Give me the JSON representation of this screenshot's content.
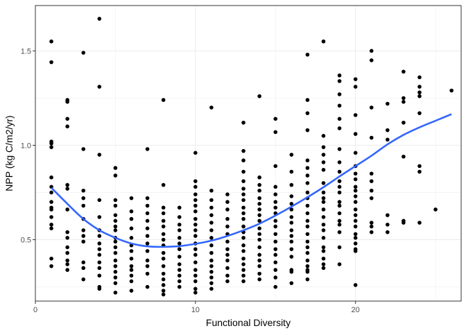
{
  "chart_data": {
    "type": "scatter",
    "title": "",
    "xlabel": "Functional Diversity",
    "ylabel": "NPP (kg C/m2/yr)",
    "xlim": [
      0,
      26.6
    ],
    "ylim": [
      0.175,
      1.74
    ],
    "x_ticks": [
      0,
      10,
      20
    ],
    "y_ticks": [
      0.5,
      1.0,
      1.5
    ],
    "x_tick_labels": [
      "0",
      "10",
      "20"
    ],
    "y_tick_labels": [
      "0.5",
      "1.0",
      "1.5"
    ],
    "grid": true,
    "legend": "none",
    "point_color": "#000000",
    "smooth_color": "#3366ff",
    "points": [
      [
        1,
        1.55
      ],
      [
        1,
        1.44
      ],
      [
        1,
        1.02
      ],
      [
        1,
        1.01
      ],
      [
        1,
        0.99
      ],
      [
        1,
        0.83
      ],
      [
        1,
        0.78
      ],
      [
        1,
        0.75
      ],
      [
        1,
        0.7
      ],
      [
        1,
        0.67
      ],
      [
        1,
        0.66
      ],
      [
        1,
        0.62
      ],
      [
        1,
        0.58
      ],
      [
        1,
        0.56
      ],
      [
        1,
        0.4
      ],
      [
        1,
        0.36
      ],
      [
        2,
        1.24
      ],
      [
        2,
        1.23
      ],
      [
        2,
        1.14
      ],
      [
        2,
        1.1
      ],
      [
        2,
        0.79
      ],
      [
        2,
        0.77
      ],
      [
        2,
        0.66
      ],
      [
        2,
        0.54
      ],
      [
        2,
        0.51
      ],
      [
        2,
        0.46
      ],
      [
        2,
        0.43
      ],
      [
        2,
        0.39
      ],
      [
        2,
        0.37
      ],
      [
        2,
        0.34
      ],
      [
        3,
        1.49
      ],
      [
        3,
        0.98
      ],
      [
        3,
        0.76
      ],
      [
        3,
        0.72
      ],
      [
        3,
        0.68
      ],
      [
        3,
        0.61
      ],
      [
        3,
        0.55
      ],
      [
        3,
        0.52
      ],
      [
        3,
        0.49
      ],
      [
        3,
        0.38
      ],
      [
        3,
        0.35
      ],
      [
        3,
        0.29
      ],
      [
        4,
        1.67
      ],
      [
        4,
        1.31
      ],
      [
        4,
        0.95
      ],
      [
        4,
        0.71
      ],
      [
        4,
        0.62
      ],
      [
        4,
        0.55
      ],
      [
        4,
        0.52
      ],
      [
        4,
        0.48
      ],
      [
        4,
        0.45
      ],
      [
        4,
        0.42
      ],
      [
        4,
        0.38
      ],
      [
        4,
        0.35
      ],
      [
        4,
        0.31
      ],
      [
        4,
        0.25
      ],
      [
        4,
        0.24
      ],
      [
        5,
        0.88
      ],
      [
        5,
        0.84
      ],
      [
        5,
        0.71
      ],
      [
        5,
        0.68
      ],
      [
        5,
        0.63
      ],
      [
        5,
        0.6
      ],
      [
        5,
        0.57
      ],
      [
        5,
        0.55
      ],
      [
        5,
        0.51
      ],
      [
        5,
        0.49
      ],
      [
        5,
        0.46
      ],
      [
        5,
        0.43
      ],
      [
        5,
        0.39
      ],
      [
        5,
        0.36
      ],
      [
        5,
        0.33
      ],
      [
        5,
        0.3
      ],
      [
        5,
        0.27
      ],
      [
        5,
        0.22
      ],
      [
        6,
        0.72
      ],
      [
        6,
        0.65
      ],
      [
        6,
        0.61
      ],
      [
        6,
        0.56
      ],
      [
        6,
        0.51
      ],
      [
        6,
        0.47
      ],
      [
        6,
        0.44
      ],
      [
        6,
        0.4
      ],
      [
        6,
        0.36
      ],
      [
        6,
        0.34
      ],
      [
        6,
        0.31
      ],
      [
        6,
        0.28
      ],
      [
        6,
        0.23
      ],
      [
        7,
        0.98
      ],
      [
        7,
        0.72
      ],
      [
        7,
        0.68
      ],
      [
        7,
        0.64
      ],
      [
        7,
        0.6
      ],
      [
        7,
        0.56
      ],
      [
        7,
        0.52
      ],
      [
        7,
        0.48
      ],
      [
        7,
        0.44
      ],
      [
        7,
        0.39
      ],
      [
        7,
        0.36
      ],
      [
        7,
        0.32
      ],
      [
        7,
        0.25
      ],
      [
        8,
        1.24
      ],
      [
        8,
        0.79
      ],
      [
        8,
        0.67
      ],
      [
        8,
        0.64
      ],
      [
        8,
        0.6
      ],
      [
        8,
        0.57
      ],
      [
        8,
        0.53
      ],
      [
        8,
        0.5
      ],
      [
        8,
        0.47
      ],
      [
        8,
        0.43
      ],
      [
        8,
        0.4
      ],
      [
        8,
        0.36
      ],
      [
        8,
        0.32
      ],
      [
        8,
        0.29
      ],
      [
        8,
        0.26
      ],
      [
        8,
        0.23
      ],
      [
        8,
        0.21
      ],
      [
        9,
        0.67
      ],
      [
        9,
        0.62
      ],
      [
        9,
        0.58
      ],
      [
        9,
        0.55
      ],
      [
        9,
        0.51
      ],
      [
        9,
        0.48
      ],
      [
        9,
        0.45
      ],
      [
        9,
        0.41
      ],
      [
        9,
        0.37
      ],
      [
        9,
        0.34
      ],
      [
        9,
        0.31
      ],
      [
        9,
        0.28
      ],
      [
        9,
        0.25
      ],
      [
        10,
        0.96
      ],
      [
        10,
        0.81
      ],
      [
        10,
        0.78
      ],
      [
        10,
        0.74
      ],
      [
        10,
        0.71
      ],
      [
        10,
        0.68
      ],
      [
        10,
        0.65
      ],
      [
        10,
        0.61
      ],
      [
        10,
        0.58
      ],
      [
        10,
        0.55
      ],
      [
        10,
        0.52
      ],
      [
        10,
        0.48
      ],
      [
        10,
        0.45
      ],
      [
        10,
        0.42
      ],
      [
        10,
        0.38
      ],
      [
        10,
        0.34
      ],
      [
        10,
        0.31
      ],
      [
        10,
        0.28
      ],
      [
        10,
        0.24
      ],
      [
        10,
        0.22
      ],
      [
        11,
        1.2
      ],
      [
        11,
        0.76
      ],
      [
        11,
        0.71
      ],
      [
        11,
        0.67
      ],
      [
        11,
        0.63
      ],
      [
        11,
        0.59
      ],
      [
        11,
        0.55
      ],
      [
        11,
        0.51
      ],
      [
        11,
        0.47
      ],
      [
        11,
        0.43
      ],
      [
        11,
        0.39
      ],
      [
        11,
        0.36
      ],
      [
        11,
        0.33
      ],
      [
        11,
        0.3
      ],
      [
        11,
        0.27
      ],
      [
        11,
        0.24
      ],
      [
        12,
        0.74
      ],
      [
        12,
        0.7
      ],
      [
        12,
        0.66
      ],
      [
        12,
        0.61
      ],
      [
        12,
        0.57
      ],
      [
        12,
        0.53
      ],
      [
        12,
        0.49
      ],
      [
        12,
        0.45
      ],
      [
        12,
        0.42
      ],
      [
        12,
        0.39
      ],
      [
        12,
        0.35
      ],
      [
        12,
        0.31
      ],
      [
        12,
        0.28
      ],
      [
        13,
        1.12
      ],
      [
        13,
        0.97
      ],
      [
        13,
        0.92
      ],
      [
        13,
        0.86
      ],
      [
        13,
        0.81
      ],
      [
        13,
        0.77
      ],
      [
        13,
        0.74
      ],
      [
        13,
        0.71
      ],
      [
        13,
        0.67
      ],
      [
        13,
        0.64
      ],
      [
        13,
        0.61
      ],
      [
        13,
        0.57
      ],
      [
        13,
        0.54
      ],
      [
        13,
        0.51
      ],
      [
        13,
        0.47
      ],
      [
        13,
        0.44
      ],
      [
        13,
        0.4
      ],
      [
        13,
        0.37
      ],
      [
        13,
        0.34
      ],
      [
        13,
        0.31
      ],
      [
        13,
        0.28
      ],
      [
        14,
        1.26
      ],
      [
        14,
        0.83
      ],
      [
        14,
        0.79
      ],
      [
        14,
        0.76
      ],
      [
        14,
        0.72
      ],
      [
        14,
        0.69
      ],
      [
        14,
        0.66
      ],
      [
        14,
        0.63
      ],
      [
        14,
        0.6
      ],
      [
        14,
        0.56
      ],
      [
        14,
        0.53
      ],
      [
        14,
        0.5
      ],
      [
        14,
        0.46
      ],
      [
        14,
        0.42
      ],
      [
        14,
        0.39
      ],
      [
        14,
        0.36
      ],
      [
        14,
        0.32
      ],
      [
        14,
        0.29
      ],
      [
        15,
        1.14
      ],
      [
        15,
        1.07
      ],
      [
        15,
        0.89
      ],
      [
        15,
        0.78
      ],
      [
        15,
        0.74
      ],
      [
        15,
        0.7
      ],
      [
        15,
        0.67
      ],
      [
        15,
        0.64
      ],
      [
        15,
        0.6
      ],
      [
        15,
        0.57
      ],
      [
        15,
        0.53
      ],
      [
        15,
        0.49
      ],
      [
        15,
        0.45
      ],
      [
        15,
        0.42
      ],
      [
        15,
        0.38
      ],
      [
        15,
        0.34
      ],
      [
        15,
        0.3
      ],
      [
        15,
        0.25
      ],
      [
        16,
        0.95
      ],
      [
        16,
        0.86
      ],
      [
        16,
        0.79
      ],
      [
        16,
        0.73
      ],
      [
        16,
        0.69
      ],
      [
        16,
        0.66
      ],
      [
        16,
        0.62
      ],
      [
        16,
        0.59
      ],
      [
        16,
        0.55
      ],
      [
        16,
        0.52
      ],
      [
        16,
        0.49
      ],
      [
        16,
        0.45
      ],
      [
        16,
        0.41
      ],
      [
        16,
        0.34
      ],
      [
        16,
        0.33
      ],
      [
        16,
        0.27
      ],
      [
        17,
        1.48
      ],
      [
        17,
        1.24
      ],
      [
        17,
        1.17
      ],
      [
        17,
        1.08
      ],
      [
        17,
        0.92
      ],
      [
        17,
        0.88
      ],
      [
        17,
        0.84
      ],
      [
        17,
        0.8
      ],
      [
        17,
        0.75
      ],
      [
        17,
        0.72
      ],
      [
        17,
        0.68
      ],
      [
        17,
        0.64
      ],
      [
        17,
        0.6
      ],
      [
        17,
        0.57
      ],
      [
        17,
        0.53
      ],
      [
        17,
        0.49
      ],
      [
        17,
        0.46
      ],
      [
        17,
        0.43
      ],
      [
        17,
        0.39
      ],
      [
        17,
        0.36
      ],
      [
        17,
        0.34
      ],
      [
        17,
        0.33
      ],
      [
        17,
        0.29
      ],
      [
        18,
        1.55
      ],
      [
        18,
        1.05
      ],
      [
        18,
        0.99
      ],
      [
        18,
        0.95
      ],
      [
        18,
        0.91
      ],
      [
        18,
        0.87
      ],
      [
        18,
        0.8
      ],
      [
        18,
        0.75
      ],
      [
        18,
        0.72
      ],
      [
        18,
        0.7
      ],
      [
        18,
        0.66
      ],
      [
        18,
        0.62
      ],
      [
        18,
        0.58
      ],
      [
        18,
        0.55
      ],
      [
        18,
        0.51
      ],
      [
        18,
        0.46
      ],
      [
        18,
        0.44
      ],
      [
        18,
        0.4
      ],
      [
        18,
        0.37
      ],
      [
        18,
        0.35
      ],
      [
        19,
        1.37
      ],
      [
        19,
        1.34
      ],
      [
        19,
        1.27
      ],
      [
        19,
        1.21
      ],
      [
        19,
        1.14
      ],
      [
        19,
        1.09
      ],
      [
        19,
        0.98
      ],
      [
        19,
        0.91
      ],
      [
        19,
        0.86
      ],
      [
        19,
        0.81
      ],
      [
        19,
        0.78
      ],
      [
        19,
        0.75
      ],
      [
        19,
        0.7
      ],
      [
        19,
        0.68
      ],
      [
        19,
        0.64
      ],
      [
        19,
        0.6
      ],
      [
        19,
        0.58
      ],
      [
        19,
        0.54
      ],
      [
        19,
        0.46
      ],
      [
        19,
        0.37
      ],
      [
        20,
        1.35
      ],
      [
        20,
        1.31
      ],
      [
        20,
        1.16
      ],
      [
        20,
        1.06
      ],
      [
        20,
        0.96
      ],
      [
        20,
        0.89
      ],
      [
        20,
        0.85
      ],
      [
        20,
        0.82
      ],
      [
        20,
        0.78
      ],
      [
        20,
        0.76
      ],
      [
        20,
        0.73
      ],
      [
        20,
        0.7
      ],
      [
        20,
        0.66
      ],
      [
        20,
        0.63
      ],
      [
        20,
        0.6
      ],
      [
        20,
        0.57
      ],
      [
        20,
        0.53
      ],
      [
        20,
        0.51
      ],
      [
        20,
        0.48
      ],
      [
        20,
        0.45
      ],
      [
        20,
        0.44
      ],
      [
        20,
        0.26
      ],
      [
        21,
        1.5
      ],
      [
        21,
        1.45
      ],
      [
        21,
        1.2
      ],
      [
        21,
        1.04
      ],
      [
        21,
        0.85
      ],
      [
        21,
        0.81
      ],
      [
        21,
        0.76
      ],
      [
        21,
        0.72
      ],
      [
        21,
        0.59
      ],
      [
        21,
        0.57
      ],
      [
        21,
        0.54
      ],
      [
        22,
        1.22
      ],
      [
        22,
        1.08
      ],
      [
        22,
        1.03
      ],
      [
        22,
        0.63
      ],
      [
        22,
        0.58
      ],
      [
        22,
        0.54
      ],
      [
        23,
        1.39
      ],
      [
        23,
        1.25
      ],
      [
        23,
        1.23
      ],
      [
        23,
        1.12
      ],
      [
        23,
        0.94
      ],
      [
        23,
        0.6
      ],
      [
        23,
        0.59
      ],
      [
        24,
        1.36
      ],
      [
        24,
        1.31
      ],
      [
        24,
        1.28
      ],
      [
        24,
        1.26
      ],
      [
        24,
        1.17
      ],
      [
        24,
        0.89
      ],
      [
        24,
        0.86
      ],
      [
        24,
        0.59
      ],
      [
        25,
        0.66
      ],
      [
        26,
        1.29
      ]
    ],
    "smooth": [
      [
        1,
        0.775
      ],
      [
        2,
        0.69
      ],
      [
        3,
        0.61
      ],
      [
        4,
        0.55
      ],
      [
        5,
        0.51
      ],
      [
        6,
        0.48
      ],
      [
        7,
        0.465
      ],
      [
        8,
        0.462
      ],
      [
        9,
        0.466
      ],
      [
        10,
        0.478
      ],
      [
        11,
        0.495
      ],
      [
        12,
        0.52
      ],
      [
        13,
        0.55
      ],
      [
        14,
        0.585
      ],
      [
        15,
        0.628
      ],
      [
        16,
        0.675
      ],
      [
        17,
        0.725
      ],
      [
        18,
        0.778
      ],
      [
        19,
        0.835
      ],
      [
        20,
        0.89
      ],
      [
        21,
        0.945
      ],
      [
        22,
        1.005
      ],
      [
        23,
        1.055
      ],
      [
        24,
        1.095
      ],
      [
        25,
        1.13
      ],
      [
        26,
        1.165
      ]
    ]
  }
}
